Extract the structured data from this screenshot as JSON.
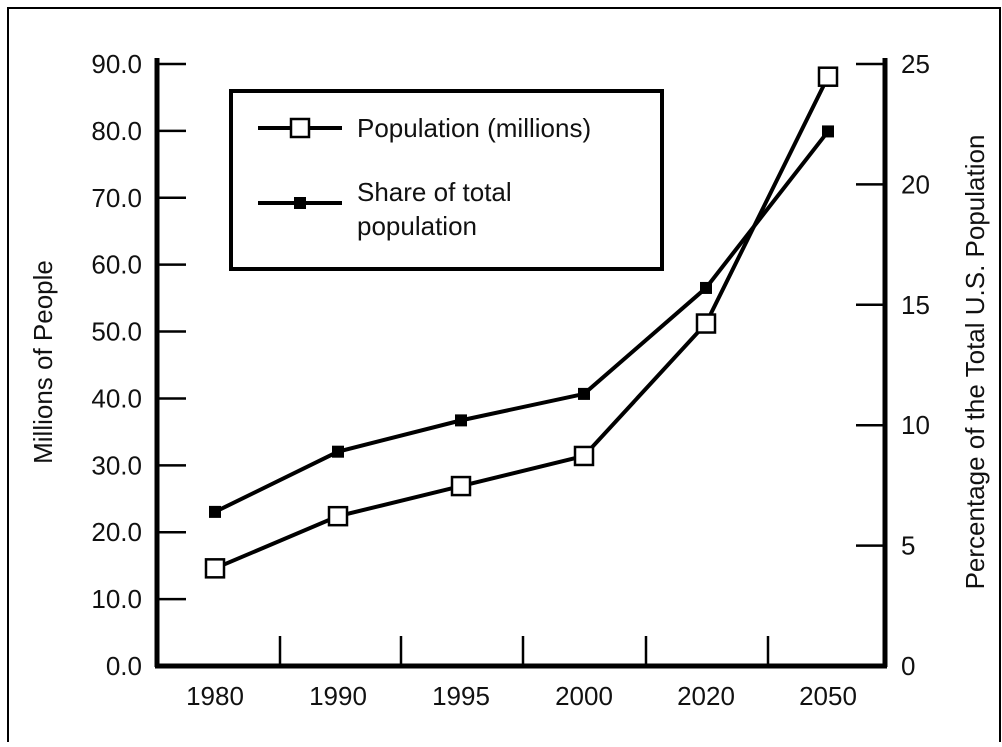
{
  "chart_data": {
    "type": "line",
    "categories": [
      "1980",
      "1990",
      "1995",
      "2000",
      "2020",
      "2050"
    ],
    "series": [
      {
        "name": "Population (millions)",
        "axis": "left",
        "marker": "open-square",
        "values": [
          14.6,
          22.4,
          26.9,
          31.4,
          51.2,
          88.1
        ]
      },
      {
        "name": "Share of total population",
        "axis": "right",
        "marker": "filled-square",
        "values": [
          6.4,
          8.9,
          10.2,
          11.3,
          15.7,
          22.2
        ]
      }
    ],
    "ylabel": "Millions of People",
    "y2label": "Percentage of the Total U.S. Population",
    "xlabel": "",
    "title": "",
    "ylim": [
      0,
      90
    ],
    "y2lim": [
      0,
      25
    ],
    "y_ticks": [
      "0.0",
      "10.0",
      "20.0",
      "30.0",
      "40.0",
      "50.0",
      "60.0",
      "70.0",
      "80.0",
      "90.0"
    ],
    "y2_ticks": [
      "0",
      "5",
      "10",
      "15",
      "20",
      "25"
    ],
    "legend": {
      "placement": "top-left",
      "labels": [
        "Population (millions)",
        "Share of total",
        "population"
      ]
    },
    "grid": false,
    "colors": {
      "line": "#000000",
      "background": "#ffffff"
    }
  }
}
